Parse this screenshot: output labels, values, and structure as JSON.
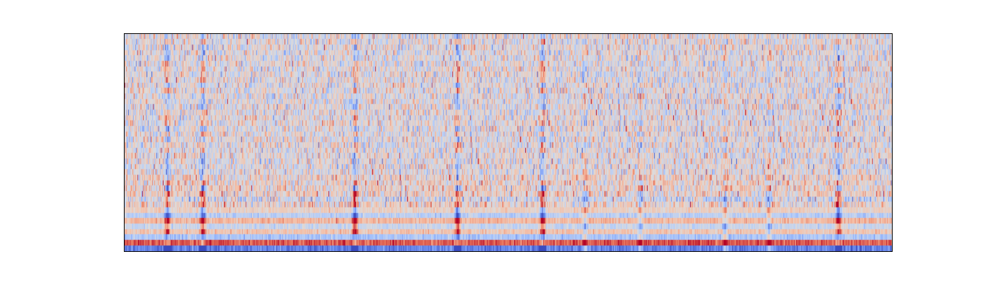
{
  "chart_data": {
    "type": "heatmap",
    "title": "",
    "xlabel": "",
    "ylabel": "",
    "x_ticks": [],
    "y_ticks": [],
    "colormap": "coolwarm",
    "colormap_stops": [
      "#3b4cc0",
      "#7396f5",
      "#b0cbfc",
      "#dddcdc",
      "#f6bfa6",
      "#ea7b60",
      "#b40426"
    ],
    "value_range": [
      -1,
      1
    ],
    "rows": 40,
    "columns": 1084,
    "frame_color": "#000000",
    "background_color": "#ffffff",
    "event_columns": [
      60,
      110,
      325,
      470,
      590,
      1008
    ],
    "moderate_event_columns": [
      650,
      728,
      848,
      910
    ],
    "low_row_band_values": [
      -0.75,
      0.75,
      -0.35,
      0.25,
      -0.15,
      0.35,
      -0.25,
      0.15
    ]
  }
}
